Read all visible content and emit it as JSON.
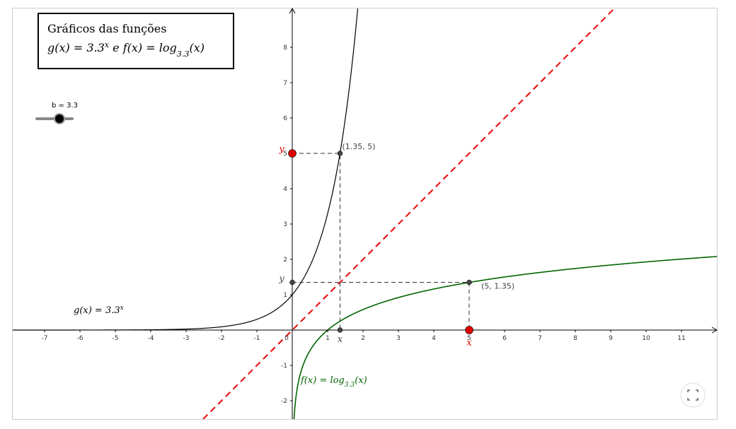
{
  "chart_data": {
    "type": "function_plot",
    "title_lines": [
      [
        "Gráficos das funções"
      ],
      [
        "g(x) = 3.3",
        "x",
        " e f(x) = log",
        "3.3",
        "(x)"
      ]
    ],
    "slider": {
      "label": "b = 3.3",
      "value": 3.3
    },
    "base": 3.3,
    "functions": [
      {
        "kind": "exp",
        "color": "#000000",
        "label_parts": [
          "g(x)  =  3.3",
          "x"
        ]
      },
      {
        "kind": "log",
        "color": "#006400",
        "label_parts": [
          "f(x)  =  log",
          "3.3",
          "(x)"
        ]
      }
    ],
    "identity_line": {
      "color": "#e31a1c"
    },
    "points": [
      {
        "x": 1.35,
        "y": 5,
        "label": "(1.35, 5)",
        "color": "#444444"
      },
      {
        "x": 5,
        "y": 1.35,
        "label": "(5, 1.35)",
        "color": "#444444"
      },
      {
        "x": 0,
        "y": 5,
        "label": "y",
        "color": "#e00000"
      },
      {
        "x": 5,
        "y": 0,
        "label": "x",
        "color": "#e00000"
      },
      {
        "x": 1.35,
        "y": 0,
        "label": "x",
        "color": "#444444"
      },
      {
        "x": 0,
        "y": 1.35,
        "label": "y",
        "color": "#444444"
      }
    ],
    "xlim": [
      -7.9,
      12
    ],
    "ylim": [
      -2.52,
      9.1
    ],
    "xticks": [
      -7,
      -6,
      -5,
      -4,
      -3,
      -2,
      -1,
      0,
      1,
      2,
      3,
      4,
      5,
      6,
      7,
      8,
      9,
      10,
      11
    ],
    "yticks": [
      -2,
      -1,
      1,
      2,
      3,
      4,
      5,
      6,
      7,
      8
    ]
  }
}
